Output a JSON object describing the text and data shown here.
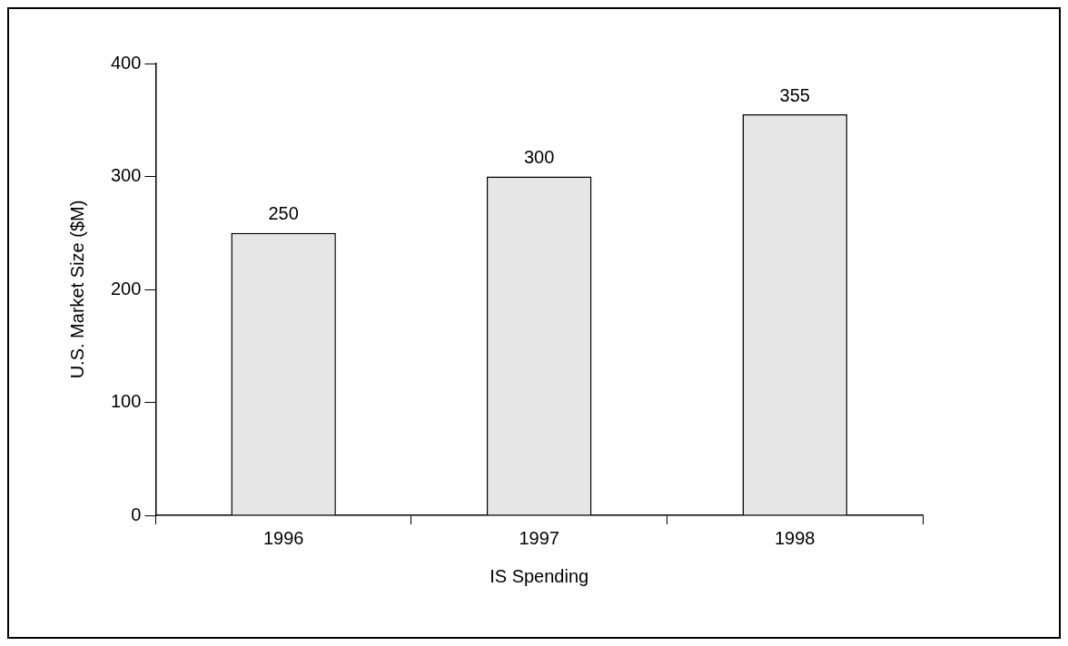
{
  "chart_data": {
    "type": "bar",
    "xlabel": "IS Spending",
    "ylabel": "U.S. Market Size ($M)",
    "categories": [
      "1996",
      "1997",
      "1998"
    ],
    "values": [
      250,
      300,
      355
    ],
    "color": "#e6e6e6",
    "ylim": [
      0,
      400
    ],
    "yticks": [
      0,
      100,
      200,
      300,
      400
    ],
    "grid": false,
    "legend": false,
    "data_labels": true
  }
}
